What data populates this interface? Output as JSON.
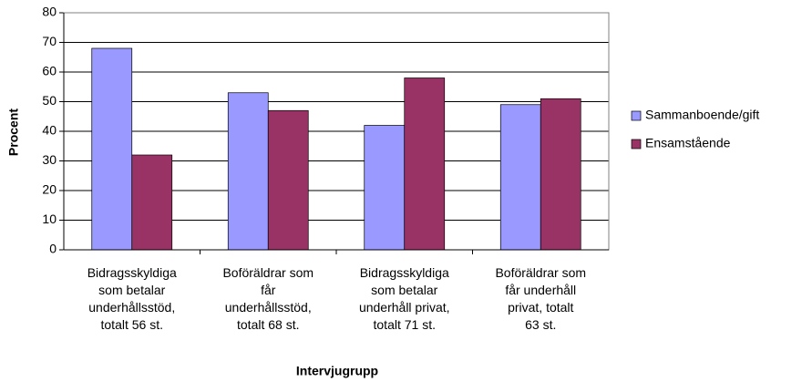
{
  "chart_data": {
    "type": "bar",
    "categories": [
      "Bidragsskyldiga\nsom betalar\nunderhållsstöd,\ntotalt 56 st.",
      "Boföräldrar som\nfår\nunderhållsstöd,\ntotalt 68 st.",
      "Bidragsskyldiga\nsom betalar\nunderhåll privat,\ntotalt 71 st.",
      "Boföräldrar som\nfår underhåll\nprivat, totalt\n63 st."
    ],
    "series": [
      {
        "name": "Sammanboende/gift",
        "color": "#9999ff",
        "values": [
          68,
          53,
          42,
          49
        ]
      },
      {
        "name": "Ensamstående",
        "color": "#993366",
        "values": [
          32,
          47,
          58,
          51
        ]
      }
    ],
    "xlabel": "Intervjugrupp",
    "ylabel": "Procent",
    "ylim": [
      0,
      80
    ],
    "yticks": [
      0,
      10,
      20,
      30,
      40,
      50,
      60,
      70,
      80
    ],
    "grid": true,
    "legend": "right"
  }
}
